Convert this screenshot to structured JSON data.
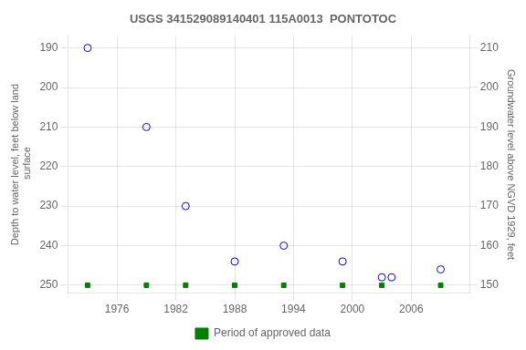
{
  "chart_data": {
    "type": "scatter",
    "title": "USGS 341529089140401 115A0013  PONTOTOC",
    "ylabel": "Depth to water level, feet below land\n surface",
    "y2label": "Groundwater level above NGVD 1929, feet",
    "series": [
      {
        "x": [
          1973,
          1979,
          1983,
          1988,
          1993,
          1999,
          2003,
          2004,
          2009
        ],
        "values": [
          190,
          210,
          230,
          244,
          240,
          244,
          248,
          248,
          246
        ],
        "color": "blue",
        "marker": "open_circle"
      },
      {
        "name": "Period of approved data",
        "x": [
          1973,
          1979,
          1983,
          1988,
          1993,
          1999,
          2003,
          2009
        ],
        "values": [
          250,
          250,
          250,
          250,
          250,
          250,
          250,
          250
        ],
        "color": "#008000",
        "marker": "square"
      }
    ],
    "xlim": [
      1971,
      2012
    ],
    "xticks": [
      1976,
      1982,
      1988,
      1994,
      2000,
      2006
    ],
    "ylim": [
      252,
      187
    ],
    "yticks": [
      190,
      200,
      210,
      220,
      230,
      240,
      250
    ],
    "y2lim": [
      148,
      213
    ],
    "y2ticks": [
      150,
      160,
      170,
      180,
      190,
      200,
      210
    ],
    "grid": true,
    "legend": "bottom"
  }
}
